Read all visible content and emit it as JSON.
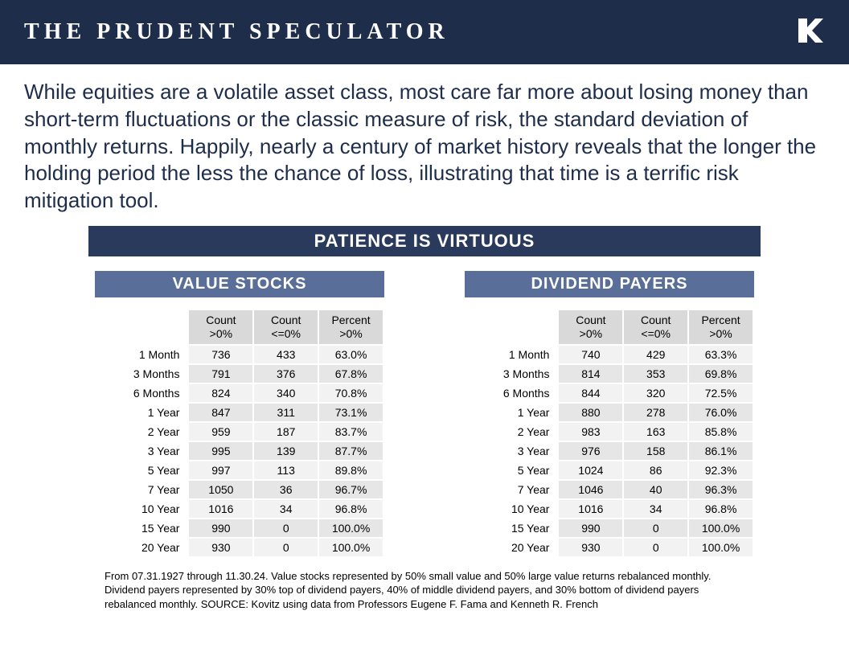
{
  "header": {
    "title": "THE PRUDENT SPECULATOR"
  },
  "intro_text": "While equities are a volatile asset class, most care far more about losing money than short-term fluctuations or the classic measure of risk, the standard deviation of monthly returns. Happily, nearly a century of market history reveals that the longer the holding period the less the chance of loss, illustrating that time is a terrific risk mitigation tool.",
  "banner_title": "PATIENCE IS VIRTUOUS",
  "columns": {
    "c1_l1": "Count",
    "c1_l2": ">0%",
    "c2_l1": "Count",
    "c2_l2": "<=0%",
    "c3_l1": "Percent",
    "c3_l2": ">0%"
  },
  "tables": [
    {
      "title": "VALUE STOCKS",
      "rows": [
        {
          "period": "1 Month",
          "count_pos": "736",
          "count_neg": "433",
          "pct_pos": "63.0%"
        },
        {
          "period": "3 Months",
          "count_pos": "791",
          "count_neg": "376",
          "pct_pos": "67.8%"
        },
        {
          "period": "6 Months",
          "count_pos": "824",
          "count_neg": "340",
          "pct_pos": "70.8%"
        },
        {
          "period": "1 Year",
          "count_pos": "847",
          "count_neg": "311",
          "pct_pos": "73.1%"
        },
        {
          "period": "2 Year",
          "count_pos": "959",
          "count_neg": "187",
          "pct_pos": "83.7%"
        },
        {
          "period": "3 Year",
          "count_pos": "995",
          "count_neg": "139",
          "pct_pos": "87.7%"
        },
        {
          "period": "5 Year",
          "count_pos": "997",
          "count_neg": "113",
          "pct_pos": "89.8%"
        },
        {
          "period": "7 Year",
          "count_pos": "1050",
          "count_neg": "36",
          "pct_pos": "96.7%"
        },
        {
          "period": "10 Year",
          "count_pos": "1016",
          "count_neg": "34",
          "pct_pos": "96.8%"
        },
        {
          "period": "15 Year",
          "count_pos": "990",
          "count_neg": "0",
          "pct_pos": "100.0%"
        },
        {
          "period": "20 Year",
          "count_pos": "930",
          "count_neg": "0",
          "pct_pos": "100.0%"
        }
      ]
    },
    {
      "title": "DIVIDEND PAYERS",
      "rows": [
        {
          "period": "1 Month",
          "count_pos": "740",
          "count_neg": "429",
          "pct_pos": "63.3%"
        },
        {
          "period": "3 Months",
          "count_pos": "814",
          "count_neg": "353",
          "pct_pos": "69.8%"
        },
        {
          "period": "6 Months",
          "count_pos": "844",
          "count_neg": "320",
          "pct_pos": "72.5%"
        },
        {
          "period": "1 Year",
          "count_pos": "880",
          "count_neg": "278",
          "pct_pos": "76.0%"
        },
        {
          "period": "2 Year",
          "count_pos": "983",
          "count_neg": "163",
          "pct_pos": "85.8%"
        },
        {
          "period": "3 Year",
          "count_pos": "976",
          "count_neg": "158",
          "pct_pos": "86.1%"
        },
        {
          "period": "5 Year",
          "count_pos": "1024",
          "count_neg": "86",
          "pct_pos": "92.3%"
        },
        {
          "period": "7 Year",
          "count_pos": "1046",
          "count_neg": "40",
          "pct_pos": "96.3%"
        },
        {
          "period": "10 Year",
          "count_pos": "1016",
          "count_neg": "34",
          "pct_pos": "96.8%"
        },
        {
          "period": "15 Year",
          "count_pos": "990",
          "count_neg": "0",
          "pct_pos": "100.0%"
        },
        {
          "period": "20 Year",
          "count_pos": "930",
          "count_neg": "0",
          "pct_pos": "100.0%"
        }
      ]
    }
  ],
  "footnote": "From 07.31.1927 through 11.30.24. Value stocks represented by 50% small value and 50% large value returns rebalanced monthly.  Dividend payers represented by 30% top of dividend payers, 40% of middle dividend payers, and 30% bottom of dividend payers rebalanced monthly. SOURCE: Kovitz using data from Professors Eugene F. Fama and Kenneth R. French",
  "colors": {
    "header_bg": "#1e2d4a",
    "banner_bg": "#2a3a5c",
    "table_title_bg": "#5a6e9a",
    "th_bg": "#d9d9d9",
    "row_odd": "#f2f2f2",
    "row_even": "#e6e6e6",
    "text_color": "#1e2d4a"
  }
}
